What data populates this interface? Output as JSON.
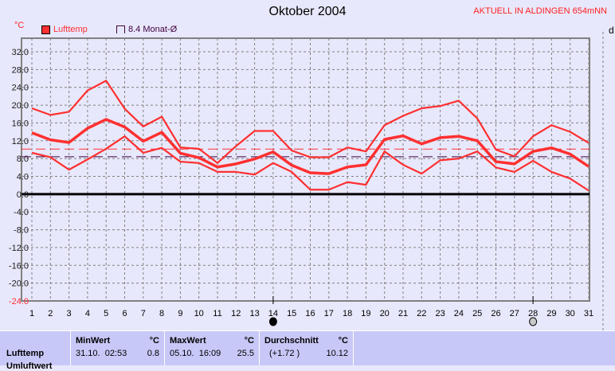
{
  "header": {
    "title": "Oktober 2004",
    "station": "AKTUELL IN ALDINGEN 654mNN",
    "right_label": "d"
  },
  "legend": [
    {
      "label": "Lufttemp",
      "color": "#ff3030"
    },
    {
      "label": "8.4 Monat-Ø",
      "color": "#400040"
    }
  ],
  "chart_data": {
    "type": "line",
    "title": "Oktober 2004",
    "ylabel": "°C",
    "x": [
      1,
      2,
      3,
      4,
      5,
      6,
      7,
      8,
      9,
      10,
      11,
      12,
      13,
      14,
      15,
      16,
      17,
      18,
      19,
      20,
      21,
      22,
      23,
      24,
      25,
      26,
      27,
      28,
      29,
      30,
      31
    ],
    "ylim": [
      -24,
      32
    ],
    "yticks": [
      "32.0",
      "28.0",
      "24.0",
      "20.0",
      "16.0",
      "12.0",
      "8.0",
      "4.0",
      "0.0",
      "-4.0",
      "-8.0",
      "-12.0",
      "-16.0",
      "-20.0",
      "-24.0"
    ],
    "grid": true,
    "series": [
      {
        "role": "max",
        "values": [
          19.3,
          17.8,
          18.5,
          23.3,
          25.5,
          19.2,
          15.2,
          17.4,
          10.5,
          10.2,
          7.0,
          10.8,
          14.2,
          14.2,
          9.8,
          8.3,
          8.3,
          10.5,
          9.6,
          15.5,
          17.6,
          19.3,
          19.8,
          21.0,
          17.0,
          10.0,
          8.5,
          13.0,
          15.5,
          14.0,
          11.5
        ]
      },
      {
        "role": "mean",
        "values": [
          13.8,
          12.2,
          11.6,
          14.8,
          16.8,
          15.1,
          11.9,
          13.9,
          9.2,
          8.2,
          6.1,
          6.8,
          7.9,
          9.5,
          6.5,
          4.8,
          4.6,
          6.1,
          6.6,
          12.3,
          13.1,
          11.3,
          12.7,
          13.0,
          12.0,
          7.3,
          6.8,
          9.6,
          10.4,
          9.0,
          6.2
        ]
      },
      {
        "role": "min",
        "values": [
          9.3,
          8.3,
          5.5,
          7.8,
          10.2,
          13.0,
          9.3,
          10.4,
          7.3,
          7.0,
          5.0,
          5.0,
          4.4,
          7.0,
          5.0,
          1.0,
          1.0,
          2.7,
          2.1,
          9.6,
          6.6,
          4.6,
          7.6,
          8.0,
          9.6,
          6.0,
          5.0,
          7.5,
          5.0,
          3.5,
          0.8
        ]
      }
    ],
    "reference_lines": [
      {
        "value": 10.12,
        "color": "#ff3030"
      },
      {
        "value": 8.4,
        "color": "#400040"
      }
    ],
    "moon_phases": [
      {
        "day": 14,
        "phase": "new-moon"
      },
      {
        "day": 28,
        "phase": "full-moon"
      }
    ],
    "series_color": "#ff3030"
  },
  "table": {
    "row_label": "Lufttemp",
    "row_label2": "Umluftwert",
    "min": {
      "header": "MinWert",
      "unit": "°C",
      "time": "31.10.  02:53",
      "value": "0.8"
    },
    "max": {
      "header": "MaxWert",
      "unit": "°C",
      "time": "05.10.  16:09",
      "value": "25.5"
    },
    "avg": {
      "header": "Durchschnitt",
      "unit": "°C",
      "delta": "(+1.72 )",
      "value": "10.12"
    }
  }
}
